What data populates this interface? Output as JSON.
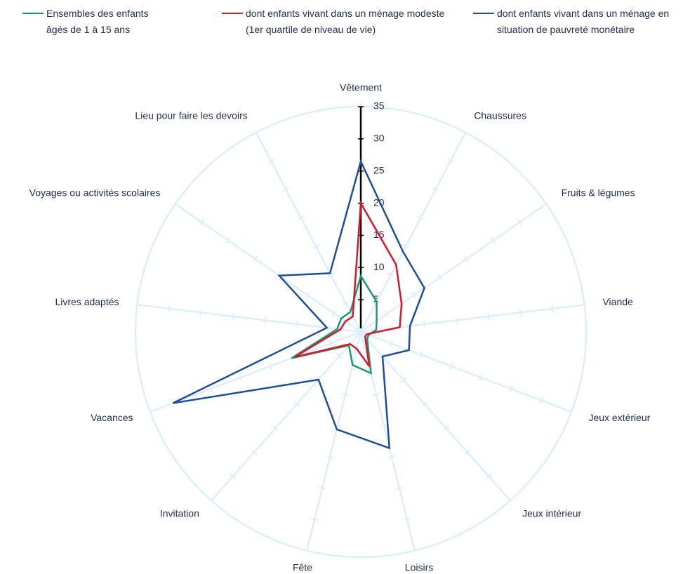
{
  "chart_data": {
    "type": "radar",
    "categories": [
      "Vêtement",
      "Chaussures",
      "Fruits & légumes",
      "Viande",
      "Jeux extérieur",
      "Jeux intérieur",
      "Loisirs",
      "Fête",
      "Invitation",
      "Vacances",
      "Livres adaptés",
      "Voyages ou activités scolaires",
      "Lieu pour faire les devoirs"
    ],
    "series": [
      {
        "name": "Ensembles des enfants âgés de 1 à 15 ans",
        "color": "#1a9a6c",
        "values": [
          8.7,
          5.3,
          3,
          2.4,
          1.3,
          1.5,
          6.6,
          5.3,
          2.8,
          11.5,
          3.7,
          3.7,
          3.5
        ]
      },
      {
        "name": "dont enfants vivant dans un ménage modeste (1er quartile de niveau de vie)",
        "color": "#d7182a",
        "values": [
          20,
          11.8,
          7.7,
          6.1,
          1,
          1,
          5.5,
          2.7,
          2.5,
          11,
          3.2,
          2.9,
          2.7
        ]
      },
      {
        "name": "dont enfants vivant dans un ménage en situation de pauvreté monétaire",
        "color": "#1f4e96",
        "values": [
          26.5,
          14.1,
          12,
          7.7,
          8,
          5.1,
          18.6,
          15.6,
          9.9,
          31.2,
          5.3,
          15.4,
          10.3
        ]
      }
    ],
    "ylim": [
      0,
      35
    ],
    "yticks": [
      0,
      5,
      10,
      15,
      20,
      25,
      30,
      35
    ]
  }
}
